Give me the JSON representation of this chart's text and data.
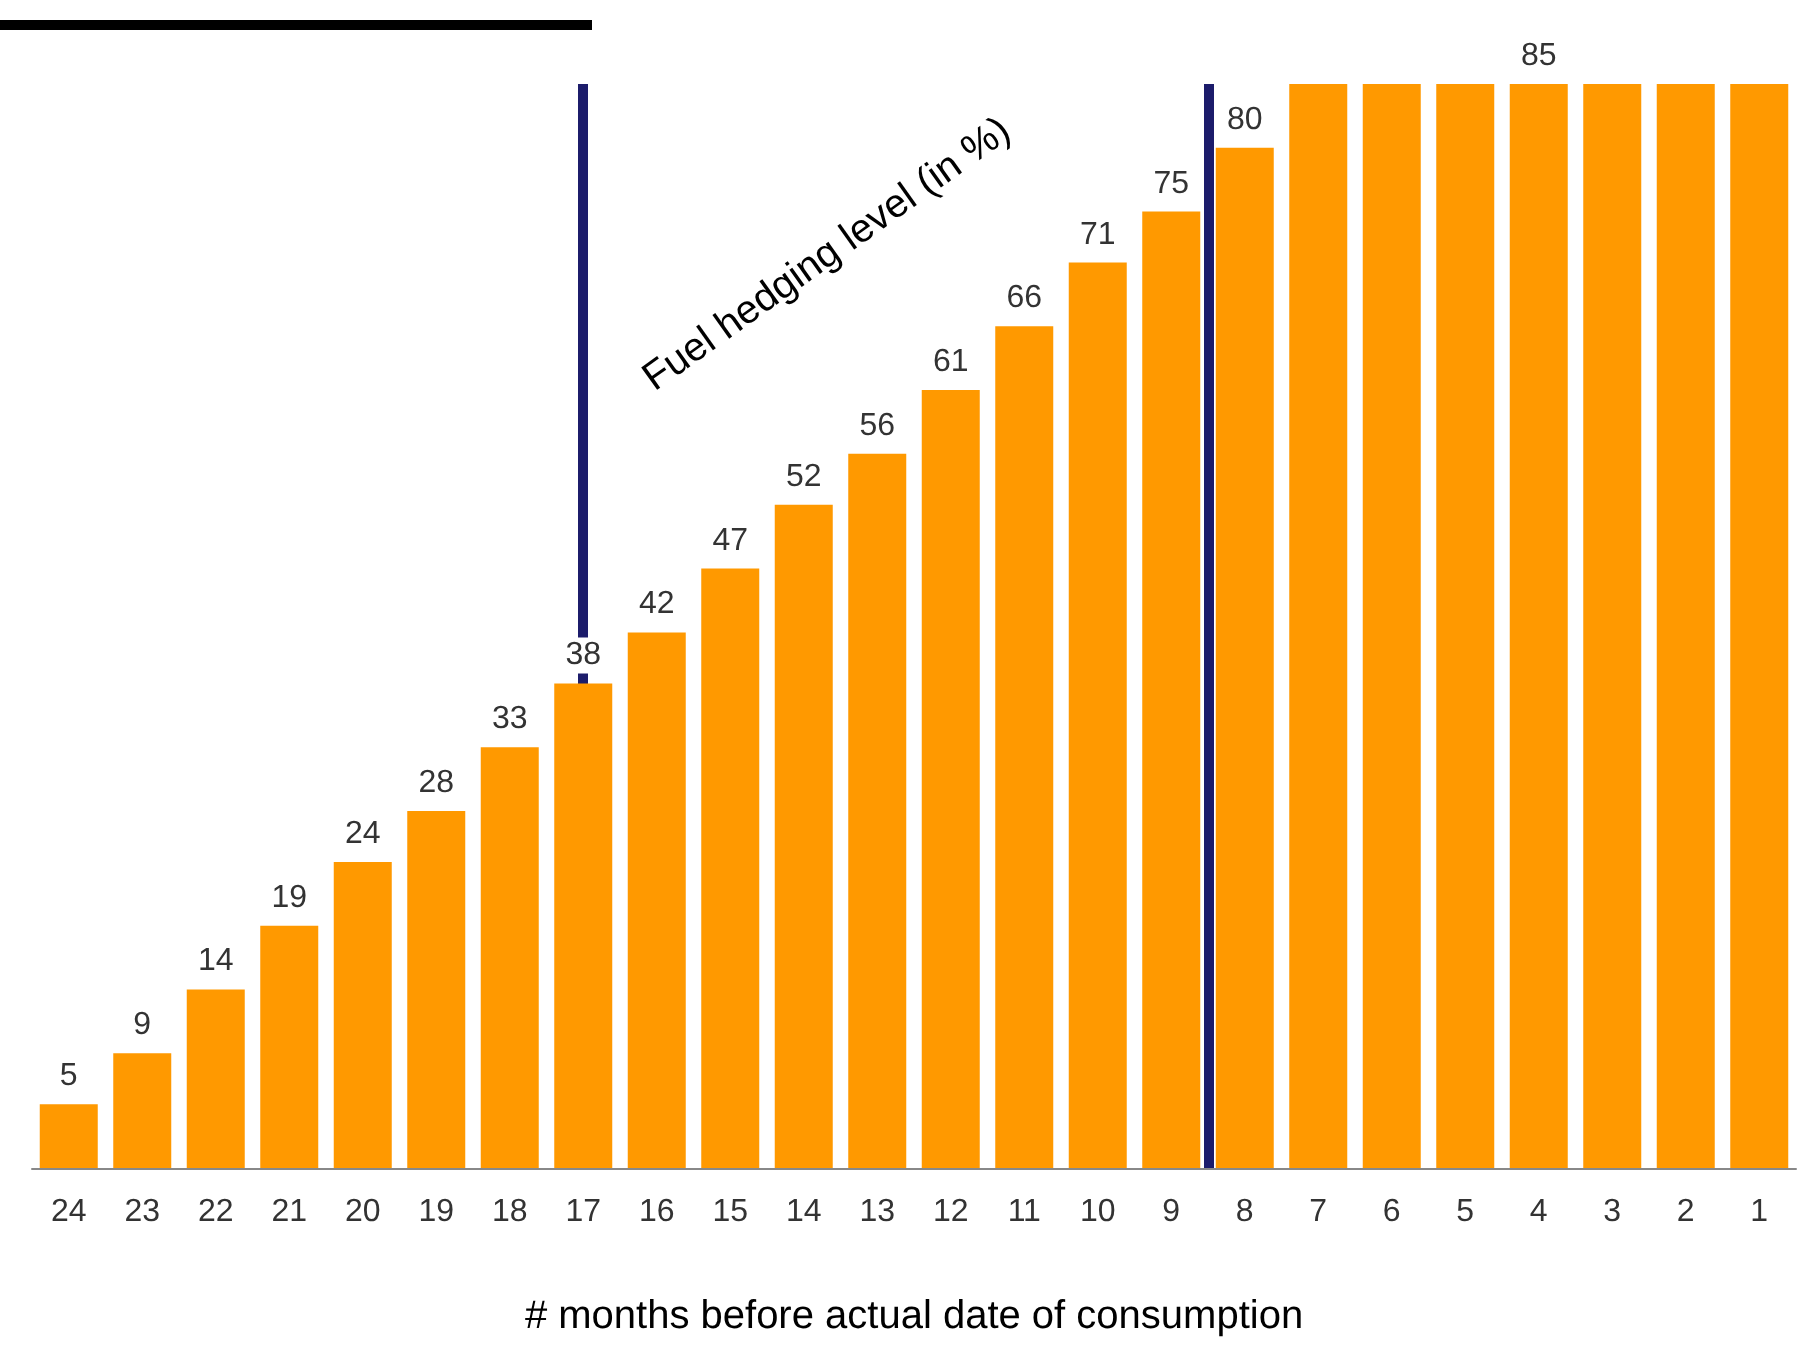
{
  "chart_data": {
    "type": "bar",
    "xlabel": "# months before actual date of consumption",
    "ylabel": "Fuel hedging level (in %)",
    "x": [
      24,
      23,
      22,
      21,
      20,
      19,
      18,
      17,
      16,
      15,
      14,
      13,
      12,
      11,
      10,
      9,
      8,
      7,
      6,
      5,
      4,
      3,
      2,
      1
    ],
    "xlim": [
      24.5,
      0.5
    ],
    "xticks": [
      24,
      23,
      22,
      21,
      20,
      19,
      18,
      17,
      16,
      15,
      14,
      13,
      12,
      11,
      10,
      9,
      8,
      7,
      6,
      5,
      4,
      3,
      2,
      1
    ],
    "ylim": [
      0,
      85
    ],
    "tick_labels": "x",
    "grid": false,
    "values": [
      5,
      9,
      14,
      19,
      24,
      28,
      33,
      38,
      42,
      47,
      52,
      56,
      61,
      66,
      71,
      75,
      80,
      85,
      85,
      85,
      85,
      85,
      85,
      85
    ],
    "value_labels": [
      "5",
      "9",
      "14",
      "19",
      "24",
      "28",
      "33",
      "38",
      "42",
      "47",
      "52",
      "56",
      "61",
      "66",
      "71",
      "75",
      "80",
      null,
      null,
      null,
      "85",
      null,
      null,
      null
    ],
    "color": "#ff9900",
    "ref_lines": [
      {
        "axis": "x",
        "value": 17,
        "color": "#1c1c6b"
      },
      {
        "axis": "x",
        "value": 8.5,
        "color": "#1c1c6b"
      }
    ]
  }
}
